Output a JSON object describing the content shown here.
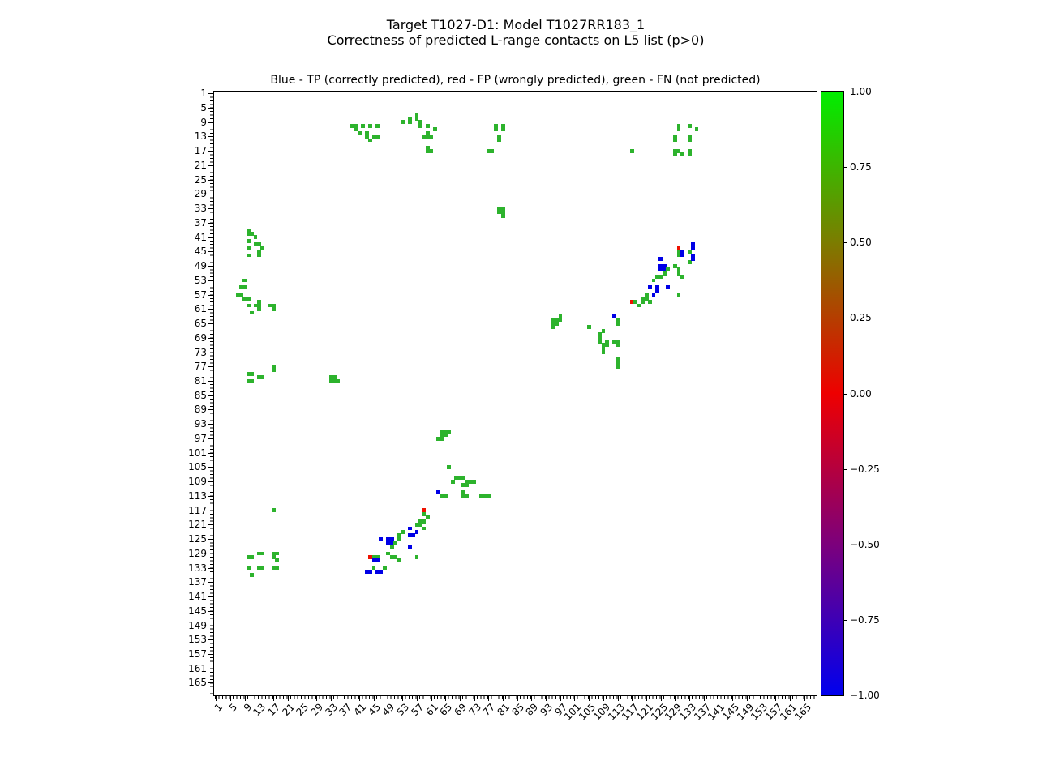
{
  "figure_title": {
    "line1": "Target T1027-D1: Model T1027RR183_1",
    "line2_prefix": "Correctness of predicted L-range contacts on L",
    "line2_overline": "5",
    "line2_suffix": " list (p>0)"
  },
  "axes": {
    "subtitle": "Blue - TP (correctly predicted), red - FP (wrongly predicted), green - FN (not predicted)",
    "tick_values": [
      1,
      5,
      9,
      13,
      17,
      21,
      25,
      29,
      33,
      37,
      41,
      45,
      49,
      53,
      57,
      61,
      65,
      69,
      73,
      77,
      81,
      85,
      89,
      93,
      97,
      101,
      105,
      109,
      113,
      117,
      121,
      125,
      129,
      133,
      137,
      141,
      145,
      149,
      153,
      157,
      161,
      165
    ]
  },
  "colorbar": {
    "range": [
      -1.0,
      1.0
    ],
    "gradient_colors": [
      "#00ee00",
      "#7c7c00",
      "#ee0000",
      "#7c007c",
      "#0000ee"
    ],
    "tick_labels": [
      {
        "value": 1.0,
        "label": "1.00"
      },
      {
        "value": 0.75,
        "label": "0.75"
      },
      {
        "value": 0.5,
        "label": "0.50"
      },
      {
        "value": 0.25,
        "label": "0.25"
      },
      {
        "value": 0.0,
        "label": "0.00"
      },
      {
        "value": -0.25,
        "label": "−0.25"
      },
      {
        "value": -0.5,
        "label": "−0.50"
      },
      {
        "value": -0.75,
        "label": "−0.75"
      },
      {
        "value": -1.0,
        "label": "−1.00"
      }
    ]
  },
  "chart_data": {
    "type": "heatmap",
    "title": "Blue - TP (correctly predicted), red - FP (wrongly predicted), green - FN (not predicted)",
    "xlabel": "",
    "ylabel": "",
    "axis_max": 168,
    "x_range": [
      1,
      168
    ],
    "y_range": [
      1,
      168
    ],
    "y_inverted": true,
    "grid": false,
    "symmetric": true,
    "legend": {
      "TP": "correctly predicted (blue)",
      "FP": "wrongly predicted (red)",
      "FN": "not predicted (green)"
    },
    "colors": {
      "TP": "#0000e6",
      "FP": "#ee1100",
      "FN": "#2db32d"
    },
    "points": [
      [
        39,
        10,
        "FN"
      ],
      [
        40,
        10,
        "FN"
      ],
      [
        40,
        11,
        "FN"
      ],
      [
        41,
        12,
        "FN"
      ],
      [
        42,
        10,
        "FN"
      ],
      [
        43,
        12,
        "FN"
      ],
      [
        43,
        13,
        "FN"
      ],
      [
        44,
        10,
        "FN"
      ],
      [
        44,
        14,
        "FN"
      ],
      [
        45,
        13,
        "FN"
      ],
      [
        46,
        10,
        "FN"
      ],
      [
        46,
        13,
        "FN"
      ],
      [
        53,
        9,
        "FN"
      ],
      [
        55,
        8,
        "FN"
      ],
      [
        55,
        9,
        "FN"
      ],
      [
        57,
        7,
        "FN"
      ],
      [
        57,
        8,
        "FN"
      ],
      [
        58,
        9,
        "FN"
      ],
      [
        58,
        10,
        "FN"
      ],
      [
        59,
        13,
        "FN"
      ],
      [
        60,
        10,
        "FN"
      ],
      [
        60,
        12,
        "FN"
      ],
      [
        60,
        13,
        "FN"
      ],
      [
        60,
        16,
        "FN"
      ],
      [
        60,
        17,
        "FN"
      ],
      [
        61,
        13,
        "FN"
      ],
      [
        61,
        17,
        "FN"
      ],
      [
        62,
        11,
        "FN"
      ],
      [
        77,
        17,
        "FN"
      ],
      [
        78,
        17,
        "FN"
      ],
      [
        79,
        10,
        "FN"
      ],
      [
        79,
        11,
        "FN"
      ],
      [
        80,
        13,
        "FN"
      ],
      [
        80,
        14,
        "FN"
      ],
      [
        81,
        10,
        "FN"
      ],
      [
        81,
        11,
        "FN"
      ],
      [
        80,
        33,
        "FN"
      ],
      [
        80,
        34,
        "FN"
      ],
      [
        81,
        33,
        "FN"
      ],
      [
        81,
        34,
        "FN"
      ],
      [
        81,
        35,
        "FN"
      ],
      [
        95,
        64,
        "FN"
      ],
      [
        95,
        65,
        "FN"
      ],
      [
        95,
        66,
        "FN"
      ],
      [
        96,
        64,
        "FN"
      ],
      [
        96,
        65,
        "FN"
      ],
      [
        97,
        63,
        "FN"
      ],
      [
        97,
        64,
        "FN"
      ],
      [
        105,
        66,
        "FN"
      ],
      [
        108,
        68,
        "FN"
      ],
      [
        108,
        69,
        "FN"
      ],
      [
        108,
        70,
        "FN"
      ],
      [
        109,
        67,
        "FN"
      ],
      [
        109,
        71,
        "FN"
      ],
      [
        109,
        72,
        "FN"
      ],
      [
        109,
        73,
        "FN"
      ],
      [
        110,
        70,
        "FN"
      ],
      [
        110,
        71,
        "FN"
      ],
      [
        112,
        63,
        "TP"
      ],
      [
        112,
        70,
        "FN"
      ],
      [
        113,
        64,
        "FN"
      ],
      [
        113,
        65,
        "FN"
      ],
      [
        113,
        70,
        "FN"
      ],
      [
        113,
        71,
        "FN"
      ],
      [
        113,
        75,
        "FN"
      ],
      [
        113,
        76,
        "FN"
      ],
      [
        113,
        77,
        "FN"
      ],
      [
        117,
        17,
        "FN"
      ],
      [
        117,
        59,
        "FP"
      ],
      [
        118,
        59,
        "FN"
      ],
      [
        119,
        60,
        "FN"
      ],
      [
        120,
        58,
        "FN"
      ],
      [
        120,
        59,
        "FN"
      ],
      [
        121,
        57,
        "FN"
      ],
      [
        121,
        58,
        "FN"
      ],
      [
        122,
        55,
        "TP"
      ],
      [
        122,
        59,
        "FN"
      ],
      [
        123,
        57,
        "TP"
      ],
      [
        123,
        53,
        "FN"
      ],
      [
        124,
        52,
        "FN"
      ],
      [
        124,
        55,
        "TP"
      ],
      [
        124,
        56,
        "TP"
      ],
      [
        125,
        47,
        "TP"
      ],
      [
        125,
        49,
        "TP"
      ],
      [
        125,
        50,
        "TP"
      ],
      [
        125,
        52,
        "FN"
      ],
      [
        126,
        49,
        "TP"
      ],
      [
        126,
        50,
        "TP"
      ],
      [
        126,
        51,
        "FN"
      ],
      [
        127,
        50,
        "FN"
      ],
      [
        127,
        55,
        "TP"
      ],
      [
        129,
        49,
        "FN"
      ],
      [
        130,
        44,
        "FP"
      ],
      [
        130,
        45,
        "FN"
      ],
      [
        130,
        46,
        "FN"
      ],
      [
        130,
        50,
        "FN"
      ],
      [
        130,
        51,
        "FN"
      ],
      [
        130,
        57,
        "FN"
      ],
      [
        131,
        45,
        "TP"
      ],
      [
        131,
        46,
        "TP"
      ],
      [
        131,
        52,
        "FN"
      ],
      [
        133,
        45,
        "FN"
      ],
      [
        133,
        48,
        "FN"
      ],
      [
        134,
        43,
        "TP"
      ],
      [
        134,
        44,
        "TP"
      ],
      [
        134,
        46,
        "TP"
      ],
      [
        134,
        47,
        "TP"
      ],
      [
        129,
        13,
        "FN"
      ],
      [
        129,
        14,
        "FN"
      ],
      [
        129,
        17,
        "FN"
      ],
      [
        129,
        18,
        "FN"
      ],
      [
        130,
        10,
        "FN"
      ],
      [
        130,
        11,
        "FN"
      ],
      [
        130,
        17,
        "FN"
      ],
      [
        131,
        18,
        "FN"
      ],
      [
        133,
        10,
        "FN"
      ],
      [
        133,
        13,
        "FN"
      ],
      [
        133,
        14,
        "FN"
      ],
      [
        133,
        17,
        "FN"
      ],
      [
        133,
        18,
        "FN"
      ],
      [
        135,
        11,
        "FN"
      ]
    ]
  }
}
